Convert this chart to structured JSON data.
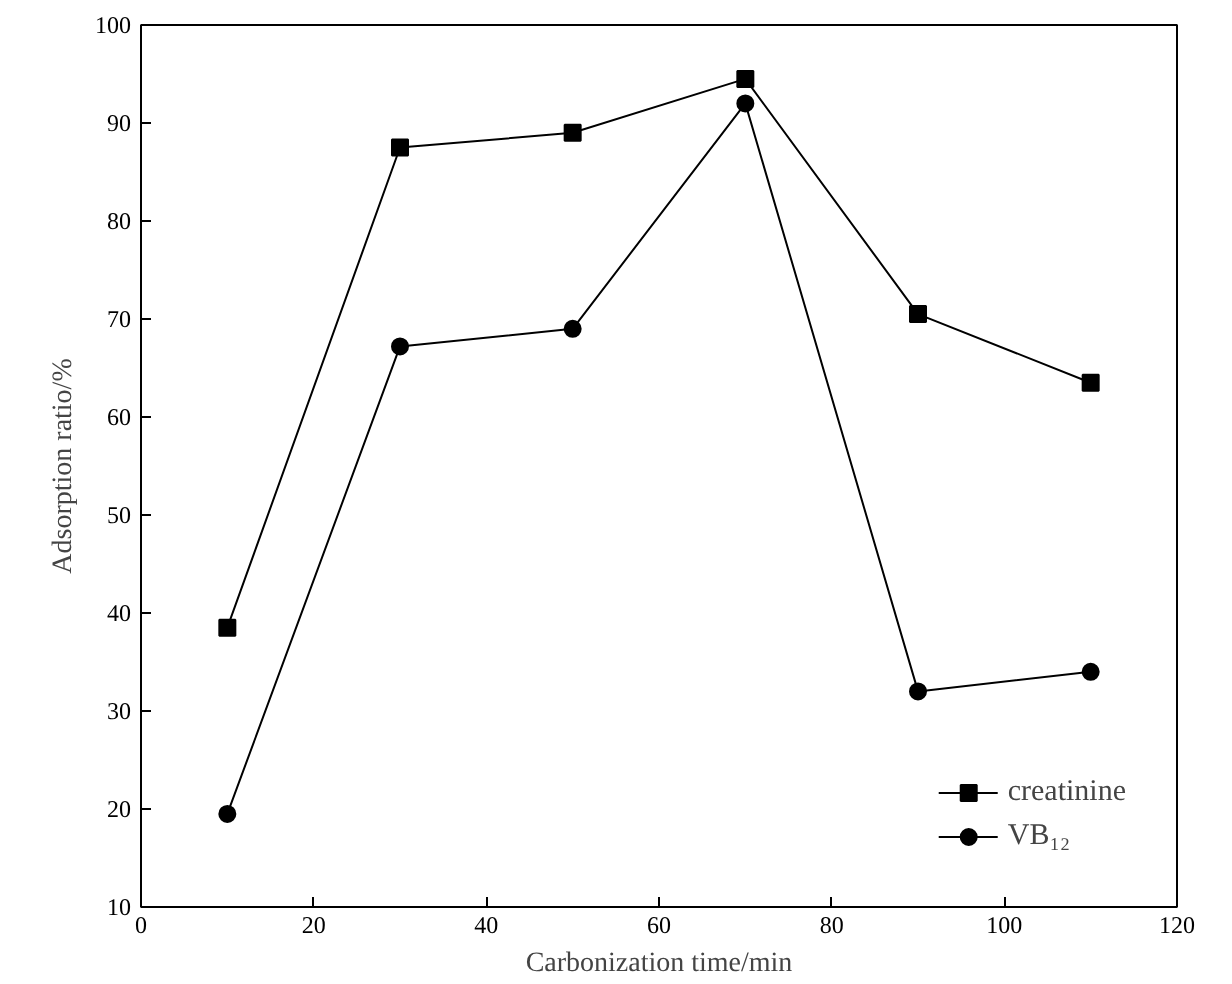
{
  "chart_data": {
    "type": "line",
    "xlabel": "Carbonization time/min",
    "ylabel": "Adsorption ratio/%",
    "x": [
      10,
      30,
      50,
      70,
      90,
      110
    ],
    "series": [
      {
        "name": "creatinine",
        "color": "#000000",
        "marker": "square",
        "values": [
          38.5,
          87.5,
          89,
          94.5,
          70.5,
          63.5
        ]
      },
      {
        "name": "VB₁₂",
        "color": "#000000",
        "marker": "circle",
        "values": [
          19.5,
          67.2,
          69,
          92,
          32,
          34
        ]
      }
    ],
    "xlim": [
      0,
      120
    ],
    "xticks": [
      0,
      20,
      40,
      60,
      80,
      100,
      120
    ],
    "ylim": [
      10,
      100
    ],
    "yticks": [
      10,
      20,
      30,
      40,
      50,
      60,
      70,
      80,
      90,
      100
    ],
    "grid": false,
    "legend": "bottom right",
    "line_style": "solid"
  }
}
